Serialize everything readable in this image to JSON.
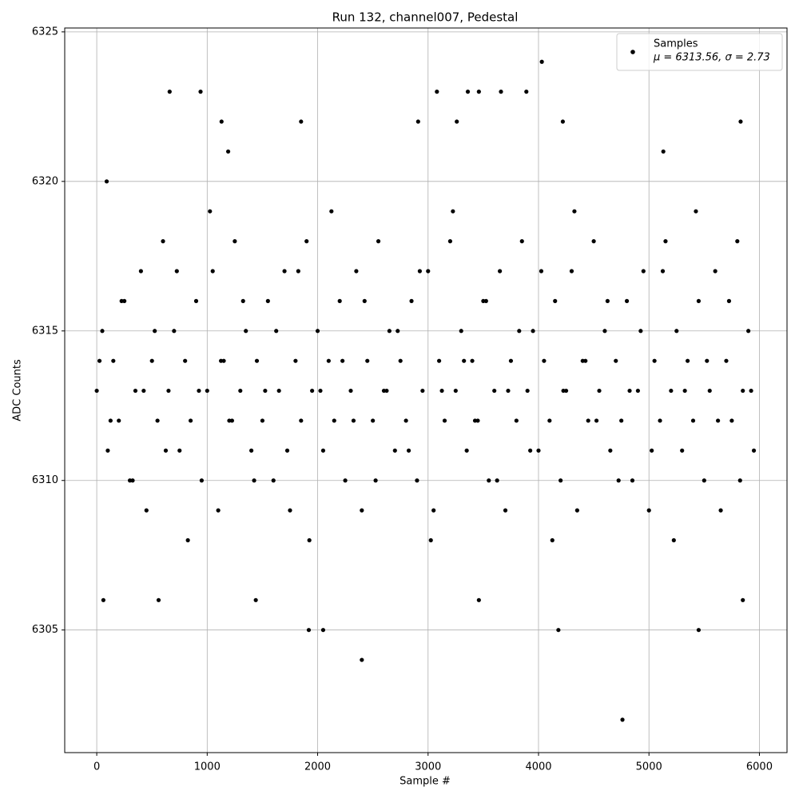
{
  "chart_data": {
    "type": "scatter",
    "title": "Run 132, channel007, Pedestal",
    "xlabel": "Sample #",
    "ylabel": "ADC Counts",
    "xlim": [
      -290,
      6250
    ],
    "ylim": [
      6300.9,
      6325.13
    ],
    "xticks": [
      0,
      1000,
      2000,
      3000,
      4000,
      5000,
      6000
    ],
    "yticks": [
      6305,
      6310,
      6315,
      6320,
      6325
    ],
    "grid": true,
    "legend": "upper right",
    "legend_note": "μ = 6313.56, σ = 2.73",
    "series": [
      {
        "name": "Samples",
        "color": "#000000",
        "x": [
          0,
          50,
          100,
          150,
          200,
          250,
          300,
          350,
          400,
          450,
          500,
          550,
          600,
          650,
          700,
          750,
          800,
          850,
          900,
          950,
          1000,
          1050,
          1100,
          1150,
          1200,
          1250,
          1300,
          1350,
          1400,
          1450,
          1500,
          1550,
          1600,
          1650,
          1700,
          1750,
          1800,
          1850,
          1900,
          1950,
          2000,
          2050,
          2100,
          2150,
          2200,
          2250,
          2300,
          2350,
          2400,
          2450,
          2500,
          2550,
          2600,
          2650,
          2700,
          2750,
          2800,
          2850,
          2900,
          2950,
          3000,
          3050,
          3100,
          3150,
          3200,
          3250,
          3300,
          3350,
          3400,
          3450,
          3500,
          3550,
          3600,
          3650,
          3700,
          3750,
          3800,
          3850,
          3900,
          3950,
          4000,
          4050,
          4100,
          4150,
          4200,
          4250,
          4300,
          4350,
          4400,
          4450,
          4500,
          4550,
          4600,
          4650,
          4700,
          4750,
          4800,
          4850,
          4900,
          4950,
          5000,
          5050,
          5100,
          5150,
          5200,
          5250,
          5300,
          5350,
          5400,
          5450,
          5500,
          5550,
          5600,
          5650,
          5700,
          5750,
          5800,
          5850,
          5900,
          5950,
          25,
          125,
          225,
          325,
          425,
          525,
          625,
          725,
          825,
          925,
          1025,
          1125,
          1225,
          1325,
          1425,
          1525,
          1625,
          1725,
          1825,
          1925,
          2025,
          2125,
          2225,
          2325,
          2425,
          2525,
          2625,
          2725,
          2825,
          2925,
          3025,
          3125,
          3225,
          3325,
          3425,
          3525,
          3625,
          3725,
          3825,
          3925,
          4025,
          4125,
          4225,
          4325,
          4425,
          4525,
          4625,
          4725,
          4825,
          4925,
          5025,
          5125,
          5225,
          5325,
          5425,
          5525,
          5625,
          5725,
          5825,
          5925,
          660,
          940,
          1130,
          1850,
          4030,
          4760,
          2400,
          1920,
          2050,
          4180,
          5450,
          3080,
          3360,
          3460,
          3660,
          3890,
          5830,
          4220,
          2910,
          3260,
          60,
          560,
          1440,
          3460,
          5850,
          90,
          1190,
          5130
        ],
        "y": [
          6313,
          6315,
          6311,
          6314,
          6312,
          6316,
          6310,
          6313,
          6317,
          6309,
          6314,
          6312,
          6318,
          6313,
          6315,
          6311,
          6314,
          6312,
          6316,
          6310,
          6313,
          6317,
          6309,
          6314,
          6312,
          6318,
          6313,
          6315,
          6311,
          6314,
          6312,
          6316,
          6310,
          6313,
          6317,
          6309,
          6314,
          6312,
          6318,
          6313,
          6315,
          6311,
          6314,
          6312,
          6316,
          6310,
          6313,
          6317,
          6309,
          6314,
          6312,
          6318,
          6313,
          6315,
          6311,
          6314,
          6312,
          6316,
          6310,
          6313,
          6317,
          6309,
          6314,
          6312,
          6318,
          6313,
          6315,
          6311,
          6314,
          6312,
          6316,
          6310,
          6313,
          6317,
          6309,
          6314,
          6312,
          6318,
          6313,
          6315,
          6311,
          6314,
          6312,
          6316,
          6310,
          6313,
          6317,
          6309,
          6314,
          6312,
          6318,
          6313,
          6315,
          6311,
          6314,
          6312,
          6316,
          6310,
          6313,
          6317,
          6309,
          6314,
          6312,
          6318,
          6313,
          6315,
          6311,
          6314,
          6312,
          6316,
          6310,
          6313,
          6317,
          6309,
          6314,
          6312,
          6318,
          6313,
          6315,
          6311,
          6314,
          6312,
          6316,
          6310,
          6313,
          6315,
          6311,
          6317,
          6308,
          6313,
          6319,
          6314,
          6312,
          6316,
          6310,
          6313,
          6315,
          6311,
          6317,
          6308,
          6313,
          6319,
          6314,
          6312,
          6316,
          6310,
          6313,
          6315,
          6311,
          6317,
          6308,
          6313,
          6319,
          6314,
          6312,
          6316,
          6310,
          6313,
          6315,
          6311,
          6317,
          6308,
          6313,
          6319,
          6314,
          6312,
          6316,
          6310,
          6313,
          6315,
          6311,
          6317,
          6308,
          6313,
          6319,
          6314,
          6312,
          6316,
          6310,
          6313,
          6323,
          6323,
          6322,
          6322,
          6324,
          6302,
          6304,
          6305,
          6305,
          6305,
          6305,
          6323,
          6323,
          6323,
          6323,
          6323,
          6322,
          6322,
          6322,
          6322,
          6306,
          6306,
          6306,
          6306,
          6306,
          6320,
          6321,
          6321
        ]
      }
    ]
  }
}
